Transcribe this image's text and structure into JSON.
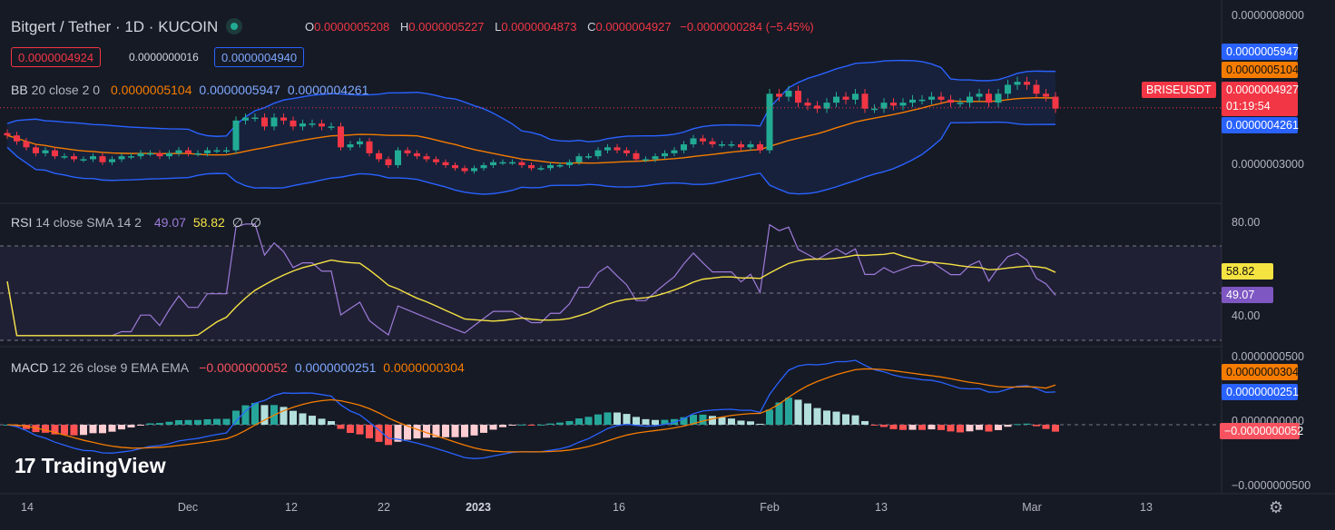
{
  "header": {
    "title": "Bitgert / Tether · 1D · KUCOIN",
    "ohlc": {
      "o_label": "O",
      "o": "0.0000005208",
      "h_label": "H",
      "h": "0.0000005227",
      "l_label": "L",
      "l": "0.0000004873",
      "c_label": "C",
      "c": "0.0000004927",
      "change": "−0.0000000284 (−5.45%)"
    },
    "bid": "0.0000004924",
    "spread": "0.0000000016",
    "ask": "0.0000004940"
  },
  "bb_legend": {
    "name": "BB",
    "params": "20 close 2 0",
    "basis": "0.0000005104",
    "upper": "0.0000005947",
    "lower": "0.0000004261"
  },
  "rsi_legend": {
    "name": "RSI",
    "params": "14 close SMA 14 2",
    "rsi": "49.07",
    "sma": "58.82",
    "v3": "∅",
    "v4": "∅"
  },
  "macd_legend": {
    "name": "MACD",
    "params": "12 26 close 9 EMA EMA",
    "hist": "−0.0000000052",
    "macd": "0.0000000251",
    "signal": "0.0000000304"
  },
  "price_axis": {
    "top": "0.0000008000",
    "mid": "0.0000003000",
    "upper_tag": "0.0000005947",
    "basis_tag": "0.0000005104",
    "last_tag": "0.0000004927",
    "countdown": "01:19:54",
    "lower_tag": "0.0000004261",
    "symbol": "BRISEUSDT"
  },
  "rsi_axis": {
    "top": "80.00",
    "bottom": "40.00",
    "sma_tag": "58.82",
    "rsi_tag": "49.07"
  },
  "macd_axis": {
    "top": "0.0000000500",
    "zero": "0.0000000000",
    "bottom": "−0.0000000500",
    "signal_tag": "0.0000000304",
    "macd_tag": "0.0000000251",
    "hist_tag": "−0.0000000052"
  },
  "time_axis": [
    "14",
    "Dec",
    "12",
    "22",
    "2023",
    "16",
    "Feb",
    "13",
    "Mar",
    "13"
  ],
  "logo_text": "TradingView",
  "colors": {
    "up": "#22ab94",
    "down": "#f23645",
    "bb_band": "#2962ff",
    "bb_basis": "#f57c00",
    "rsi": "#9d7bd9",
    "rsi_sma": "#f5e342",
    "macd": "#2962ff",
    "signal": "#f57c00",
    "bg": "#161a25"
  },
  "chart_data": [
    {
      "type": "candlestick",
      "title": "Bitgert / Tether · 1D · KUCOIN",
      "x_start": "2022-11-07",
      "x_end": "2023-03-05",
      "ylim": [
        2.2e-07,
        8.2e-07
      ],
      "close": [
        4e-07,
        3.8e-07,
        3.6e-07,
        3.4e-07,
        3.5e-07,
        3.3e-07,
        3.3e-07,
        3.2e-07,
        3.2e-07,
        3.3e-07,
        3.1e-07,
        3.2e-07,
        3.3e-07,
        3.3e-07,
        3.4e-07,
        3.4e-07,
        3.3e-07,
        3.4e-07,
        3.5e-07,
        3.4e-07,
        3.4e-07,
        3.5e-07,
        3.5e-07,
        3.5e-07,
        4.5e-07,
        4.6e-07,
        4.6e-07,
        4.3e-07,
        4.6e-07,
        4.5e-07,
        4.3e-07,
        4.4e-07,
        4.4e-07,
        4.3e-07,
        4.3e-07,
        3.6e-07,
        3.7e-07,
        3.8e-07,
        3.4e-07,
        3.2e-07,
        3e-07,
        3.5e-07,
        3.4e-07,
        3.3e-07,
        3.2e-07,
        3.1e-07,
        3e-07,
        2.9e-07,
        2.8e-07,
        2.9e-07,
        3e-07,
        3.1e-07,
        3.1e-07,
        3.1e-07,
        3e-07,
        2.9e-07,
        2.9e-07,
        3e-07,
        3e-07,
        3.1e-07,
        3.3e-07,
        3.3e-07,
        3.5e-07,
        3.6e-07,
        3.5e-07,
        3.4e-07,
        3.2e-07,
        3.2e-07,
        3.3e-07,
        3.4e-07,
        3.5e-07,
        3.7e-07,
        3.9e-07,
        3.8e-07,
        3.7e-07,
        3.7e-07,
        3.7e-07,
        3.6e-07,
        3.7e-07,
        3.5e-07,
        5.4e-07,
        5.3e-07,
        5.5e-07,
        5.1e-07,
        5e-07,
        4.9e-07,
        5.1e-07,
        5.3e-07,
        5.2e-07,
        5.4e-07,
        4.9e-07,
        4.9e-07,
        5.1e-07,
        5e-07,
        5.1e-07,
        5.2e-07,
        5.2e-07,
        5.3e-07,
        5.2e-07,
        5.1e-07,
        5.1e-07,
        5.3e-07,
        5.4e-07,
        5.1e-07,
        5.4e-07,
        5.7e-07,
        5.8e-07,
        5.7e-07,
        5.4e-07,
        5.3e-07,
        4.9e-07
      ],
      "last": {
        "open": 5.208e-07,
        "high": 5.227e-07,
        "low": 4.873e-07,
        "close": 4.927e-07
      },
      "bollinger": {
        "period": 20,
        "basis": 5.104e-07,
        "upper": 5.947e-07,
        "lower": 4.261e-07
      }
    },
    {
      "type": "line",
      "title": "RSI",
      "ylim": [
        30,
        90
      ],
      "levels": [
        70,
        50,
        30
      ],
      "series": [
        {
          "name": "RSI",
          "last": 49.07
        },
        {
          "name": "SMA",
          "last": 58.82
        }
      ]
    },
    {
      "type": "bar",
      "title": "MACD",
      "ylim": [
        -5e-08,
        5e-08
      ],
      "series": [
        {
          "name": "Histogram",
          "last": -5.2e-09
        },
        {
          "name": "MACD",
          "last": 2.51e-08
        },
        {
          "name": "Signal",
          "last": 3.04e-08
        }
      ]
    }
  ]
}
